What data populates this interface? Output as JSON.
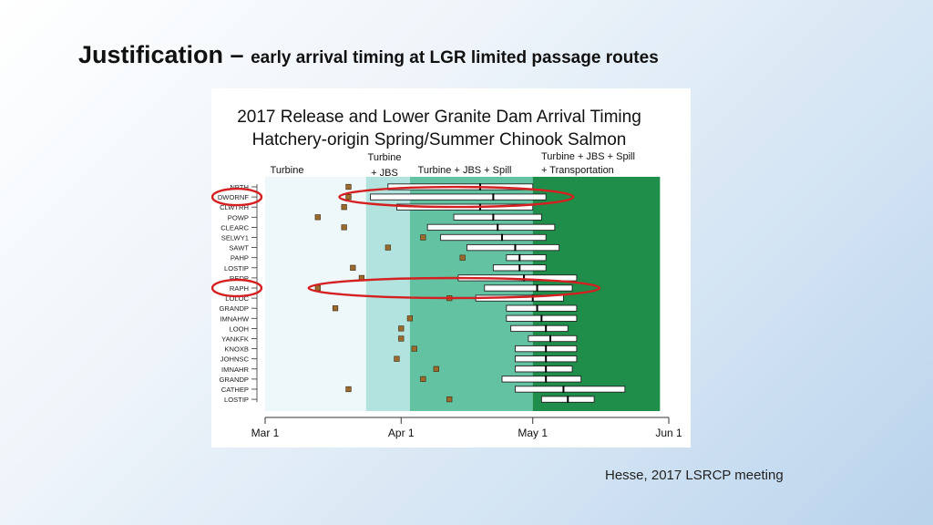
{
  "slide": {
    "title_main": "Justification",
    "title_dash": " – ",
    "title_sub": "early arrival timing at LGR limited passage routes",
    "citation": "Hesse, 2017 LSRCP meeting"
  },
  "colors": {
    "turbine_zone": "#eef7fa",
    "turbine_jbs_zone": "#b3e3de",
    "turbine_jbs_spill_zone": "#63c2a2",
    "transport_zone": "#1f8e4b",
    "release_marker": "#9c6a2c",
    "highlight_ellipse": "#d42020"
  },
  "chart_data": {
    "type": "range-bar",
    "title_line1": "2017 Release and Lower Granite Dam Arrival Timing",
    "title_line2": "Hatchery-origin Spring/Summer Chinook Salmon",
    "x_axis": {
      "unit": "day of year",
      "domain": [
        60,
        152
      ],
      "ticks": [
        {
          "label": "Mar 1",
          "day": 60
        },
        {
          "label": "Apr 1",
          "day": 91
        },
        {
          "label": "May 1",
          "day": 121
        },
        {
          "label": "Jun 1",
          "day": 152
        }
      ]
    },
    "zones": [
      {
        "label": "Turbine",
        "start": 60,
        "end": 83
      },
      {
        "label_line1": "Turbine",
        "label_line2": "+ JBS",
        "start": 83,
        "end": 93
      },
      {
        "label": "Turbine + JBS + Spill",
        "start": 93,
        "end": 121
      },
      {
        "label_line1": "Turbine + JBS + Spill",
        "label_line2": "+ Transportation",
        "start": 121,
        "end": 150
      }
    ],
    "groups": [
      {
        "name": "NPTH",
        "release": 79,
        "low": 88,
        "median": 109,
        "high": 121
      },
      {
        "name": "DWORNF",
        "release": 79,
        "low": 84,
        "median": 112,
        "high": 124,
        "highlight": true
      },
      {
        "name": "CLWTRH",
        "release": 78,
        "low": 90,
        "median": 109,
        "high": 121
      },
      {
        "name": "POWP",
        "release": 72,
        "low": 103,
        "median": 112,
        "high": 123
      },
      {
        "name": "CLEARC",
        "release": 78,
        "low": 97,
        "median": 113,
        "high": 126
      },
      {
        "name": "SELWY1",
        "release": 96,
        "low": 100,
        "median": 114,
        "high": 124
      },
      {
        "name": "SAWT",
        "release": 88,
        "low": 106,
        "median": 117,
        "high": 127
      },
      {
        "name": "PAHP",
        "release": 105,
        "low": 115,
        "median": 118,
        "high": 124
      },
      {
        "name": "LOSTIP",
        "release": 80,
        "low": 112,
        "median": 118,
        "high": 124
      },
      {
        "name": "REDP",
        "release": 82,
        "low": 104,
        "median": 119,
        "high": 131
      },
      {
        "name": "RAPH",
        "release": 72,
        "low": 110,
        "median": 122,
        "high": 130,
        "highlight": true
      },
      {
        "name": "LOLOC",
        "release": 102,
        "low": 108,
        "median": 121,
        "high": 128
      },
      {
        "name": "GRANDP",
        "release": 76,
        "low": 115,
        "median": 122,
        "high": 131
      },
      {
        "name": "IMNAHW",
        "release": 93,
        "low": 115,
        "median": 123,
        "high": 131
      },
      {
        "name": "LOOH",
        "release": 91,
        "low": 116,
        "median": 124,
        "high": 129
      },
      {
        "name": "YANKFK",
        "release": 91,
        "low": 120,
        "median": 125,
        "high": 131
      },
      {
        "name": "KNOXB",
        "release": 94,
        "low": 117,
        "median": 124,
        "high": 131
      },
      {
        "name": "JOHNSC",
        "release": 90,
        "low": 117,
        "median": 124,
        "high": 131
      },
      {
        "name": "IMNAHR",
        "release": 99,
        "low": 117,
        "median": 124,
        "high": 130
      },
      {
        "name": "GRANDP",
        "release": 96,
        "low": 114,
        "median": 124,
        "high": 132
      },
      {
        "name": "CATHEP",
        "release": 79,
        "low": 117,
        "median": 128,
        "high": 142
      },
      {
        "name": "LOSTIP",
        "release": 102,
        "low": 123,
        "median": 129,
        "high": 135
      }
    ]
  }
}
